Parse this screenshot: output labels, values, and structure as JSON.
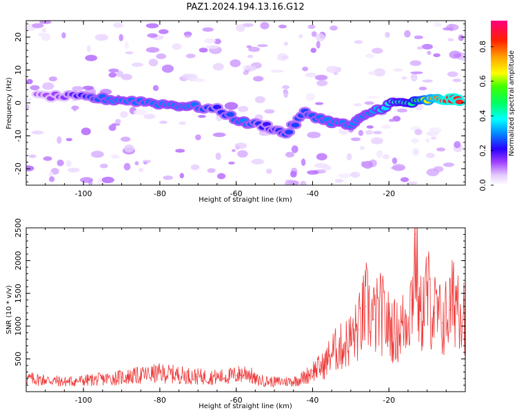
{
  "figure": {
    "title": "PAZ1.2024.194.13.16.G12"
  },
  "chart_data": [
    {
      "type": "heatmap",
      "xlabel": "Height of straight line (km)",
      "ylabel": "Frequency (Hz)",
      "xlim": [
        -115,
        0
      ],
      "ylim": [
        -25,
        25
      ],
      "xticks": [
        -100,
        -80,
        -60,
        -40,
        -20
      ],
      "yticks": [
        -20,
        -10,
        0,
        10,
        20
      ],
      "colorbar": {
        "label": "Normalized spectral amplitude",
        "range": [
          0,
          0.95
        ],
        "ticks": [
          0.0,
          0.2,
          0.4,
          0.6,
          0.8
        ]
      },
      "ridge": [
        {
          "x": -112,
          "y": 2,
          "amp": 0.12
        },
        {
          "x": -105,
          "y": 2,
          "amp": 0.15
        },
        {
          "x": -98,
          "y": 1.5,
          "amp": 0.25
        },
        {
          "x": -92,
          "y": 1,
          "amp": 0.3
        },
        {
          "x": -85,
          "y": 0.5,
          "amp": 0.28
        },
        {
          "x": -78,
          "y": -0.5,
          "amp": 0.3
        },
        {
          "x": -72,
          "y": -1,
          "amp": 0.3
        },
        {
          "x": -65,
          "y": -2,
          "amp": 0.22
        },
        {
          "x": -58,
          "y": -6,
          "amp": 0.3
        },
        {
          "x": -52,
          "y": -7,
          "amp": 0.2
        },
        {
          "x": -47,
          "y": -9.5,
          "amp": 0.25
        },
        {
          "x": -42,
          "y": -3,
          "amp": 0.25
        },
        {
          "x": -36,
          "y": -5.5,
          "amp": 0.3
        },
        {
          "x": -30,
          "y": -7,
          "amp": 0.3
        },
        {
          "x": -25,
          "y": -3,
          "amp": 0.3
        },
        {
          "x": -19,
          "y": 0,
          "amp": 0.4
        },
        {
          "x": -14,
          "y": 0,
          "amp": 0.45
        },
        {
          "x": -9,
          "y": 1,
          "amp": 0.7
        },
        {
          "x": -4,
          "y": 1,
          "amp": 0.9
        },
        {
          "x": -1,
          "y": 1,
          "amp": 0.85
        }
      ]
    },
    {
      "type": "line",
      "xlabel": "Height of straight line (km)",
      "ylabel": "SNR (10 * v/v)",
      "xlim": [
        -115,
        0
      ],
      "ylim": [
        0,
        2500
      ],
      "xticks": [
        -100,
        -80,
        -60,
        -40,
        -20
      ],
      "yticks": [
        500,
        1000,
        1500,
        2000,
        2500
      ],
      "series": [
        {
          "color": "#ee3333",
          "x": [
            -115,
            -110,
            -105,
            -100,
            -95,
            -90,
            -85,
            -80,
            -75,
            -70,
            -65,
            -60,
            -57,
            -55,
            -50,
            -45,
            -42,
            -40,
            -37,
            -35,
            -32,
            -30,
            -28,
            -26,
            -24,
            -22,
            -20,
            -18,
            -16,
            -14,
            -13,
            -12,
            -10,
            -8,
            -6,
            -4,
            -2,
            0
          ],
          "values": [
            200,
            180,
            150,
            170,
            190,
            220,
            250,
            280,
            260,
            230,
            220,
            250,
            300,
            180,
            150,
            160,
            220,
            320,
            400,
            600,
            700,
            800,
            950,
            1300,
            1100,
            1200,
            1000,
            900,
            1050,
            1400,
            2400,
            1100,
            1500,
            1200,
            1050,
            1250,
            1500,
            1200
          ]
        }
      ]
    }
  ]
}
